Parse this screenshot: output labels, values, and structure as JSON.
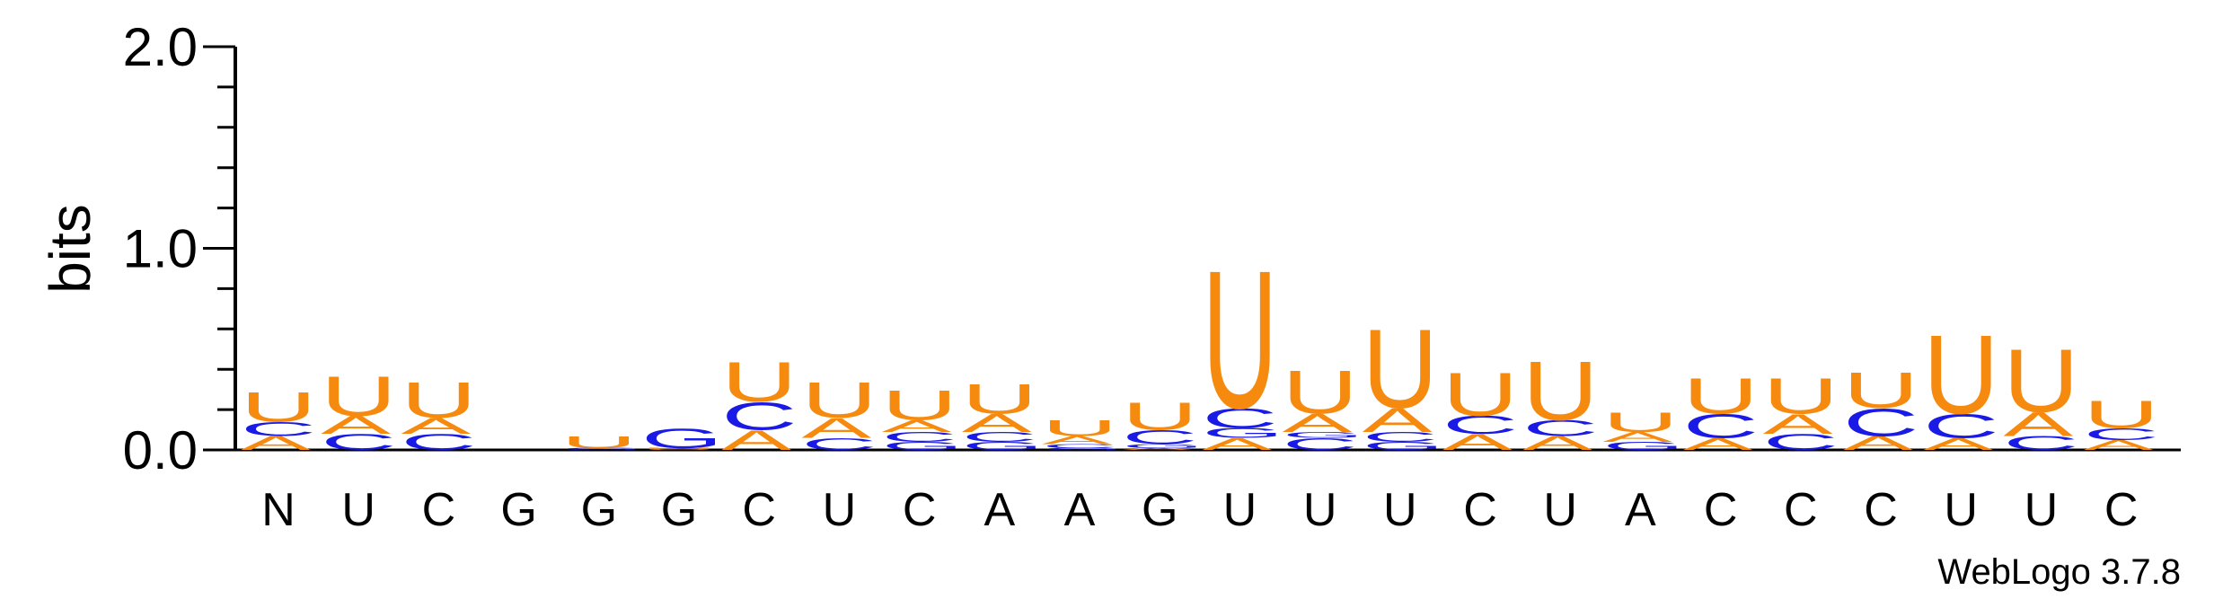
{
  "chart_data": {
    "type": "sequence-logo",
    "ylabel": "bits",
    "ylim": [
      0,
      2.0
    ],
    "yticks": [
      {
        "value": 2.0,
        "label": "2.0"
      },
      {
        "value": 1.0,
        "label": "1.0"
      },
      {
        "value": 0.0,
        "label": "0.0"
      }
    ],
    "xlabels": [
      "N",
      "U",
      "C",
      "G",
      "G",
      "G",
      "C",
      "U",
      "C",
      "A",
      "A",
      "G",
      "U",
      "U",
      "U",
      "C",
      "U",
      "A",
      "C",
      "C",
      "C",
      "U",
      "U",
      "C"
    ],
    "colors": {
      "U": "#f58a0e",
      "A": "#f58a0e",
      "C": "#1a1ae6",
      "G": "#1a1ae6"
    },
    "positions": [
      [
        {
          "b": "A",
          "h": 0.07
        },
        {
          "b": "C",
          "h": 0.07
        },
        {
          "b": "U",
          "h": 0.15
        }
      ],
      [
        {
          "b": "C",
          "h": 0.08
        },
        {
          "b": "A",
          "h": 0.09
        },
        {
          "b": "U",
          "h": 0.2
        }
      ],
      [
        {
          "b": "C",
          "h": 0.08
        },
        {
          "b": "A",
          "h": 0.08
        },
        {
          "b": "U",
          "h": 0.18
        }
      ],
      [],
      [
        {
          "b": "G",
          "h": 0.01
        },
        {
          "b": "U",
          "h": 0.06
        }
      ],
      [
        {
          "b": "U",
          "h": 0.01
        },
        {
          "b": "G",
          "h": 0.1
        }
      ],
      [
        {
          "b": "A",
          "h": 0.1
        },
        {
          "b": "C",
          "h": 0.14
        },
        {
          "b": "U",
          "h": 0.2
        }
      ],
      [
        {
          "b": "C",
          "h": 0.06
        },
        {
          "b": "A",
          "h": 0.1
        },
        {
          "b": "U",
          "h": 0.18
        }
      ],
      [
        {
          "b": "G",
          "h": 0.04
        },
        {
          "b": "C",
          "h": 0.05
        },
        {
          "b": "A",
          "h": 0.06
        },
        {
          "b": "U",
          "h": 0.15
        }
      ],
      [
        {
          "b": "G",
          "h": 0.04
        },
        {
          "b": "C",
          "h": 0.05
        },
        {
          "b": "A",
          "h": 0.09
        },
        {
          "b": "U",
          "h": 0.15
        }
      ],
      [
        {
          "b": "G",
          "h": 0.01
        },
        {
          "b": "C",
          "h": 0.02
        },
        {
          "b": "A",
          "h": 0.04
        },
        {
          "b": "U",
          "h": 0.08
        }
      ],
      [
        {
          "b": "A",
          "h": 0.01
        },
        {
          "b": "G",
          "h": 0.02
        },
        {
          "b": "C",
          "h": 0.07
        },
        {
          "b": "U",
          "h": 0.14
        }
      ],
      [
        {
          "b": "A",
          "h": 0.06
        },
        {
          "b": "G",
          "h": 0.05
        },
        {
          "b": "C",
          "h": 0.1
        },
        {
          "b": "U",
          "h": 0.7
        }
      ],
      [
        {
          "b": "C",
          "h": 0.06
        },
        {
          "b": "G",
          "h": 0.03
        },
        {
          "b": "A",
          "h": 0.09
        },
        {
          "b": "U",
          "h": 0.22
        }
      ],
      [
        {
          "b": "G",
          "h": 0.04
        },
        {
          "b": "C",
          "h": 0.05
        },
        {
          "b": "A",
          "h": 0.12
        },
        {
          "b": "U",
          "h": 0.4
        }
      ],
      [
        {
          "b": "A",
          "h": 0.08
        },
        {
          "b": "C",
          "h": 0.09
        },
        {
          "b": "U",
          "h": 0.22
        }
      ],
      [
        {
          "b": "A",
          "h": 0.07
        },
        {
          "b": "C",
          "h": 0.08
        },
        {
          "b": "U",
          "h": 0.3
        }
      ],
      [
        {
          "b": "G",
          "h": 0.04
        },
        {
          "b": "A",
          "h": 0.05
        },
        {
          "b": "U",
          "h": 0.1
        }
      ],
      [
        {
          "b": "A",
          "h": 0.06
        },
        {
          "b": "C",
          "h": 0.12
        },
        {
          "b": "U",
          "h": 0.18
        }
      ],
      [
        {
          "b": "C",
          "h": 0.08
        },
        {
          "b": "A",
          "h": 0.1
        },
        {
          "b": "U",
          "h": 0.18
        }
      ],
      [
        {
          "b": "A",
          "h": 0.07
        },
        {
          "b": "C",
          "h": 0.14
        },
        {
          "b": "U",
          "h": 0.18
        }
      ],
      [
        {
          "b": "A",
          "h": 0.06
        },
        {
          "b": "C",
          "h": 0.12
        },
        {
          "b": "U",
          "h": 0.4
        }
      ],
      [
        {
          "b": "C",
          "h": 0.07
        },
        {
          "b": "A",
          "h": 0.12
        },
        {
          "b": "U",
          "h": 0.32
        }
      ],
      [
        {
          "b": "A",
          "h": 0.05
        },
        {
          "b": "C",
          "h": 0.06
        },
        {
          "b": "U",
          "h": 0.14
        }
      ]
    ]
  },
  "credit": "WebLogo 3.7.8"
}
